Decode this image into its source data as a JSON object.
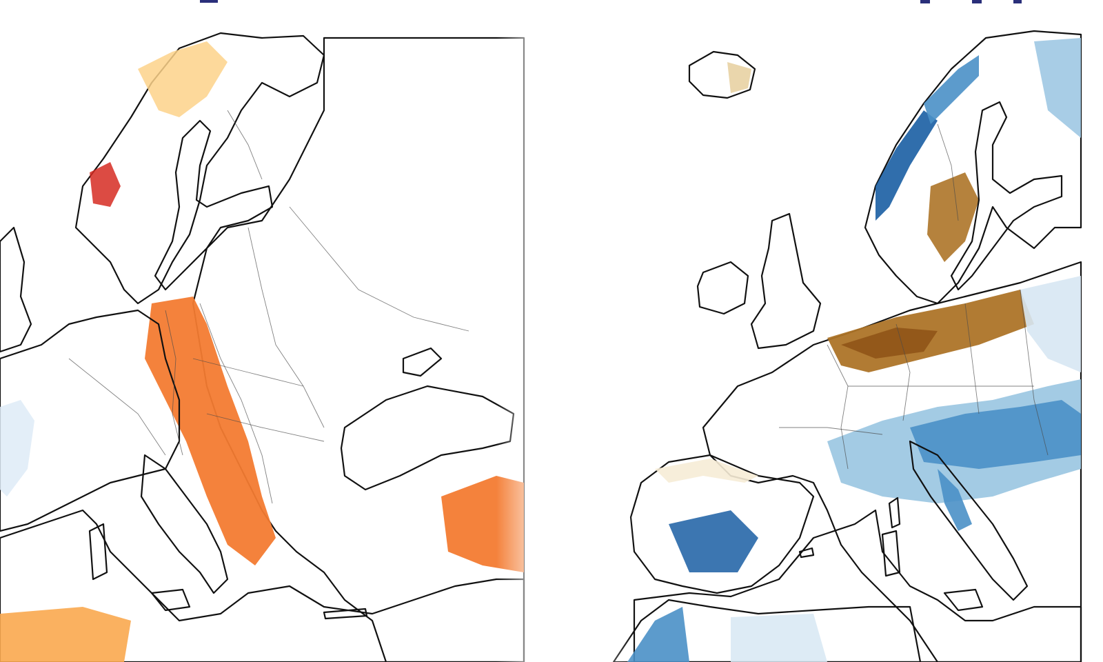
{
  "maps": [
    {
      "id": "temperature-anomaly",
      "palette": {
        "deep_red": "#a3191b",
        "red": "#d62b22",
        "red_orange": "#e8502a",
        "orange": "#f37b32",
        "light_orange": "#f9a94f",
        "pale_orange": "#fdd28a",
        "cream": "#fff1cc",
        "pale_blue": "#deebf7"
      }
    },
    {
      "id": "precipitation-anomaly",
      "palette": {
        "dark_brown": "#8c5014",
        "brown": "#ad7428",
        "tan": "#cfa35c",
        "light_tan": "#e8d2a3",
        "cream": "#f6ecd6",
        "pale_blue": "#d7e7f3",
        "light_blue": "#9ec8e3",
        "blue": "#4a90c7",
        "dark_blue": "#1a5ea3"
      }
    }
  ],
  "colors": {
    "sea": "#ffffff",
    "coastline": "#111111",
    "borders": "#4a4a4a",
    "header_accent": "#2a2f7a"
  }
}
